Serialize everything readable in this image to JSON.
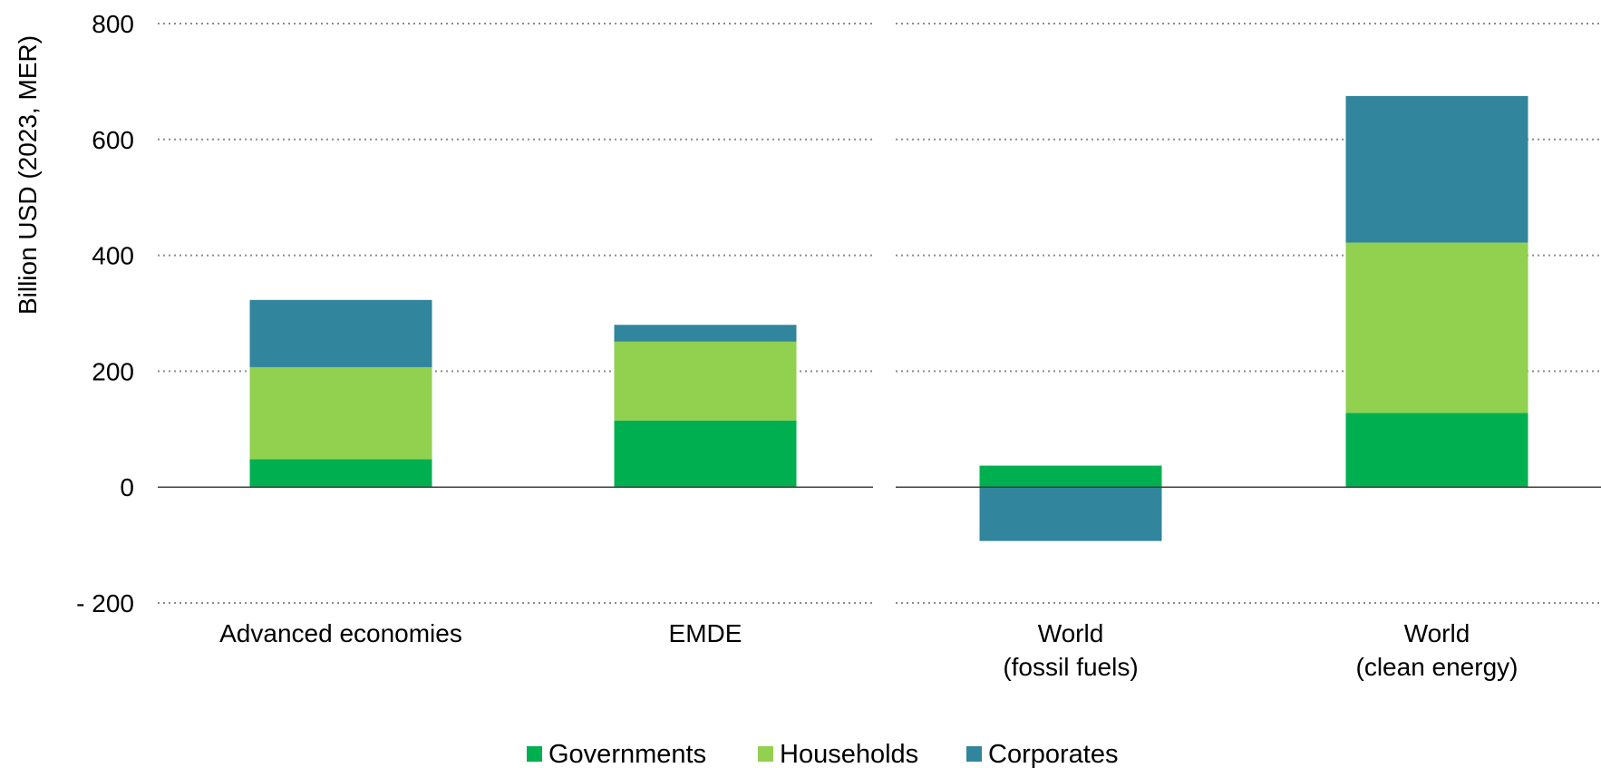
{
  "chart_data": {
    "type": "bar",
    "stacked": true,
    "ylabel": "Billion USD (2023, MER)",
    "ylim": [
      -200,
      800
    ],
    "yticks": [
      800,
      600,
      400,
      200,
      0,
      -200
    ],
    "ytick_labels": [
      "800",
      "600",
      "400",
      "200",
      "0",
      "- 200"
    ],
    "grid": true,
    "legend_position": "bottom",
    "categories": [
      [
        "Advanced economies"
      ],
      [
        "EMDE"
      ],
      [
        "World",
        "(fossil fuels)"
      ],
      [
        "World",
        "(clean energy)"
      ]
    ],
    "series": [
      {
        "name": "Governments",
        "color": "#00b050",
        "values": [
          48,
          115,
          37,
          128
        ]
      },
      {
        "name": "Households",
        "color": "#92d050",
        "values": [
          159,
          136,
          0,
          294
        ]
      },
      {
        "name": "Corporates",
        "color": "#31859c",
        "values": [
          116,
          29,
          -93,
          253
        ]
      }
    ]
  }
}
